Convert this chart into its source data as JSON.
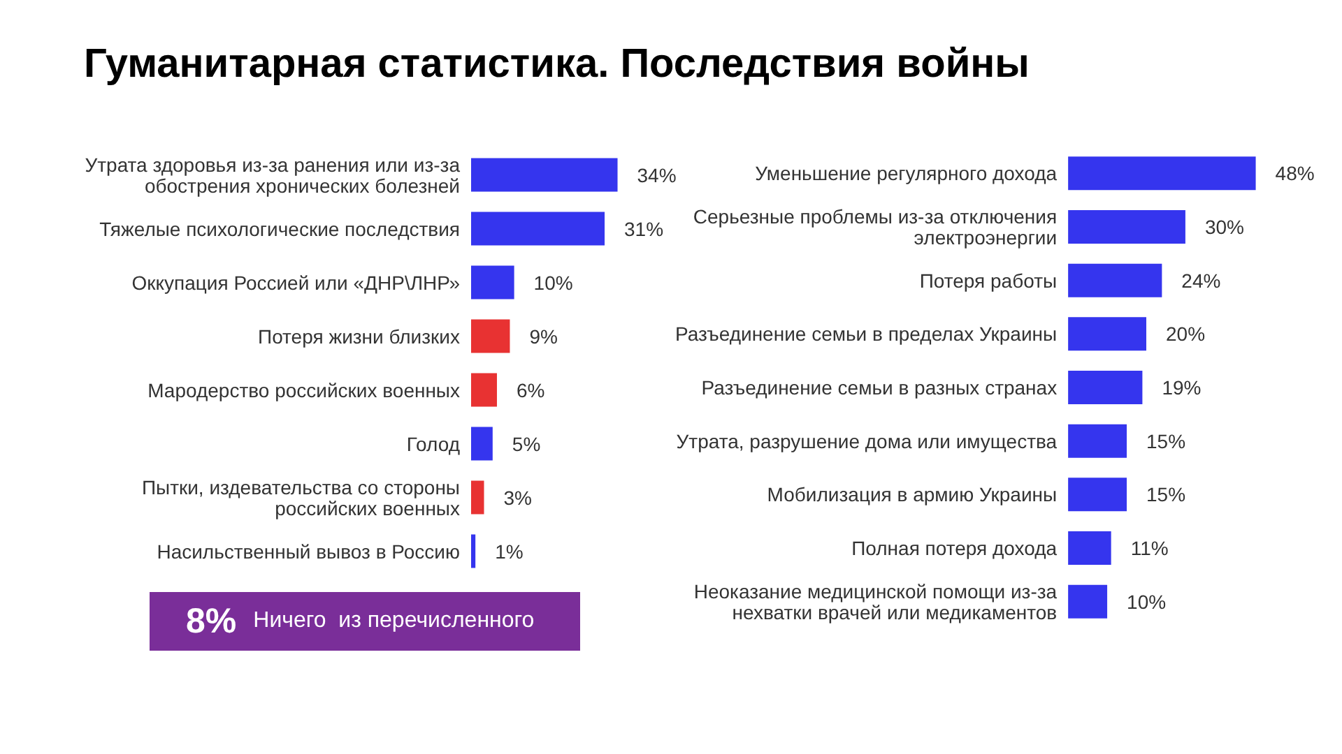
{
  "chart_data": [
    {
      "type": "bar",
      "orientation": "horizontal",
      "title": "Гуманитарная статистика. Последствия войны",
      "categories": [
        "Утрата здоровья из-за ранения или из-за обострения хронических болезней",
        "Тяжелые психологические последствия",
        "Оккупация Россией или «ДНР\\ЛНР»",
        "Потеря жизни близких",
        "Мародерство российских военных",
        "Голод",
        "Пытки, издевательства со стороны российских военных",
        "Насильственный вывоз в Россию"
      ],
      "values": [
        34,
        31,
        10,
        9,
        6,
        5,
        3,
        1
      ],
      "value_labels": [
        "34%",
        "31%",
        "10%",
        "9%",
        "6%",
        "5%",
        "3%",
        "1%"
      ],
      "colors": [
        "#3535ee",
        "#3535ee",
        "#3535ee",
        "#e83232",
        "#e83232",
        "#3535ee",
        "#e83232",
        "#3535ee"
      ]
    },
    {
      "type": "bar",
      "orientation": "horizontal",
      "categories": [
        "Уменьшение регулярного дохода",
        "Серьезные проблемы из-за отключения электроэнергии",
        "Потеря работы",
        "Разъединение семьи в пределах Украины",
        "Разъединение семьи в разных странах",
        "Утрата, разрушение дома или имущества",
        "Мобилизация в армию Украины",
        "Полная потеря дохода",
        "Неоказание медицинской помощи из-за нехватки врачей или медикаментов"
      ],
      "values": [
        48,
        30,
        24,
        20,
        19,
        15,
        15,
        11,
        10
      ],
      "value_labels": [
        "48%",
        "30%",
        "24%",
        "20%",
        "19%",
        "15%",
        "15%",
        "11%",
        "10%"
      ],
      "colors": [
        "#3535ee",
        "#3535ee",
        "#3535ee",
        "#3535ee",
        "#3535ee",
        "#3535ee",
        "#3535ee",
        "#3535ee",
        "#3535ee"
      ]
    },
    {
      "type": "other",
      "annotations": [
        "8%",
        "Ничего  из перечисленного"
      ]
    }
  ]
}
